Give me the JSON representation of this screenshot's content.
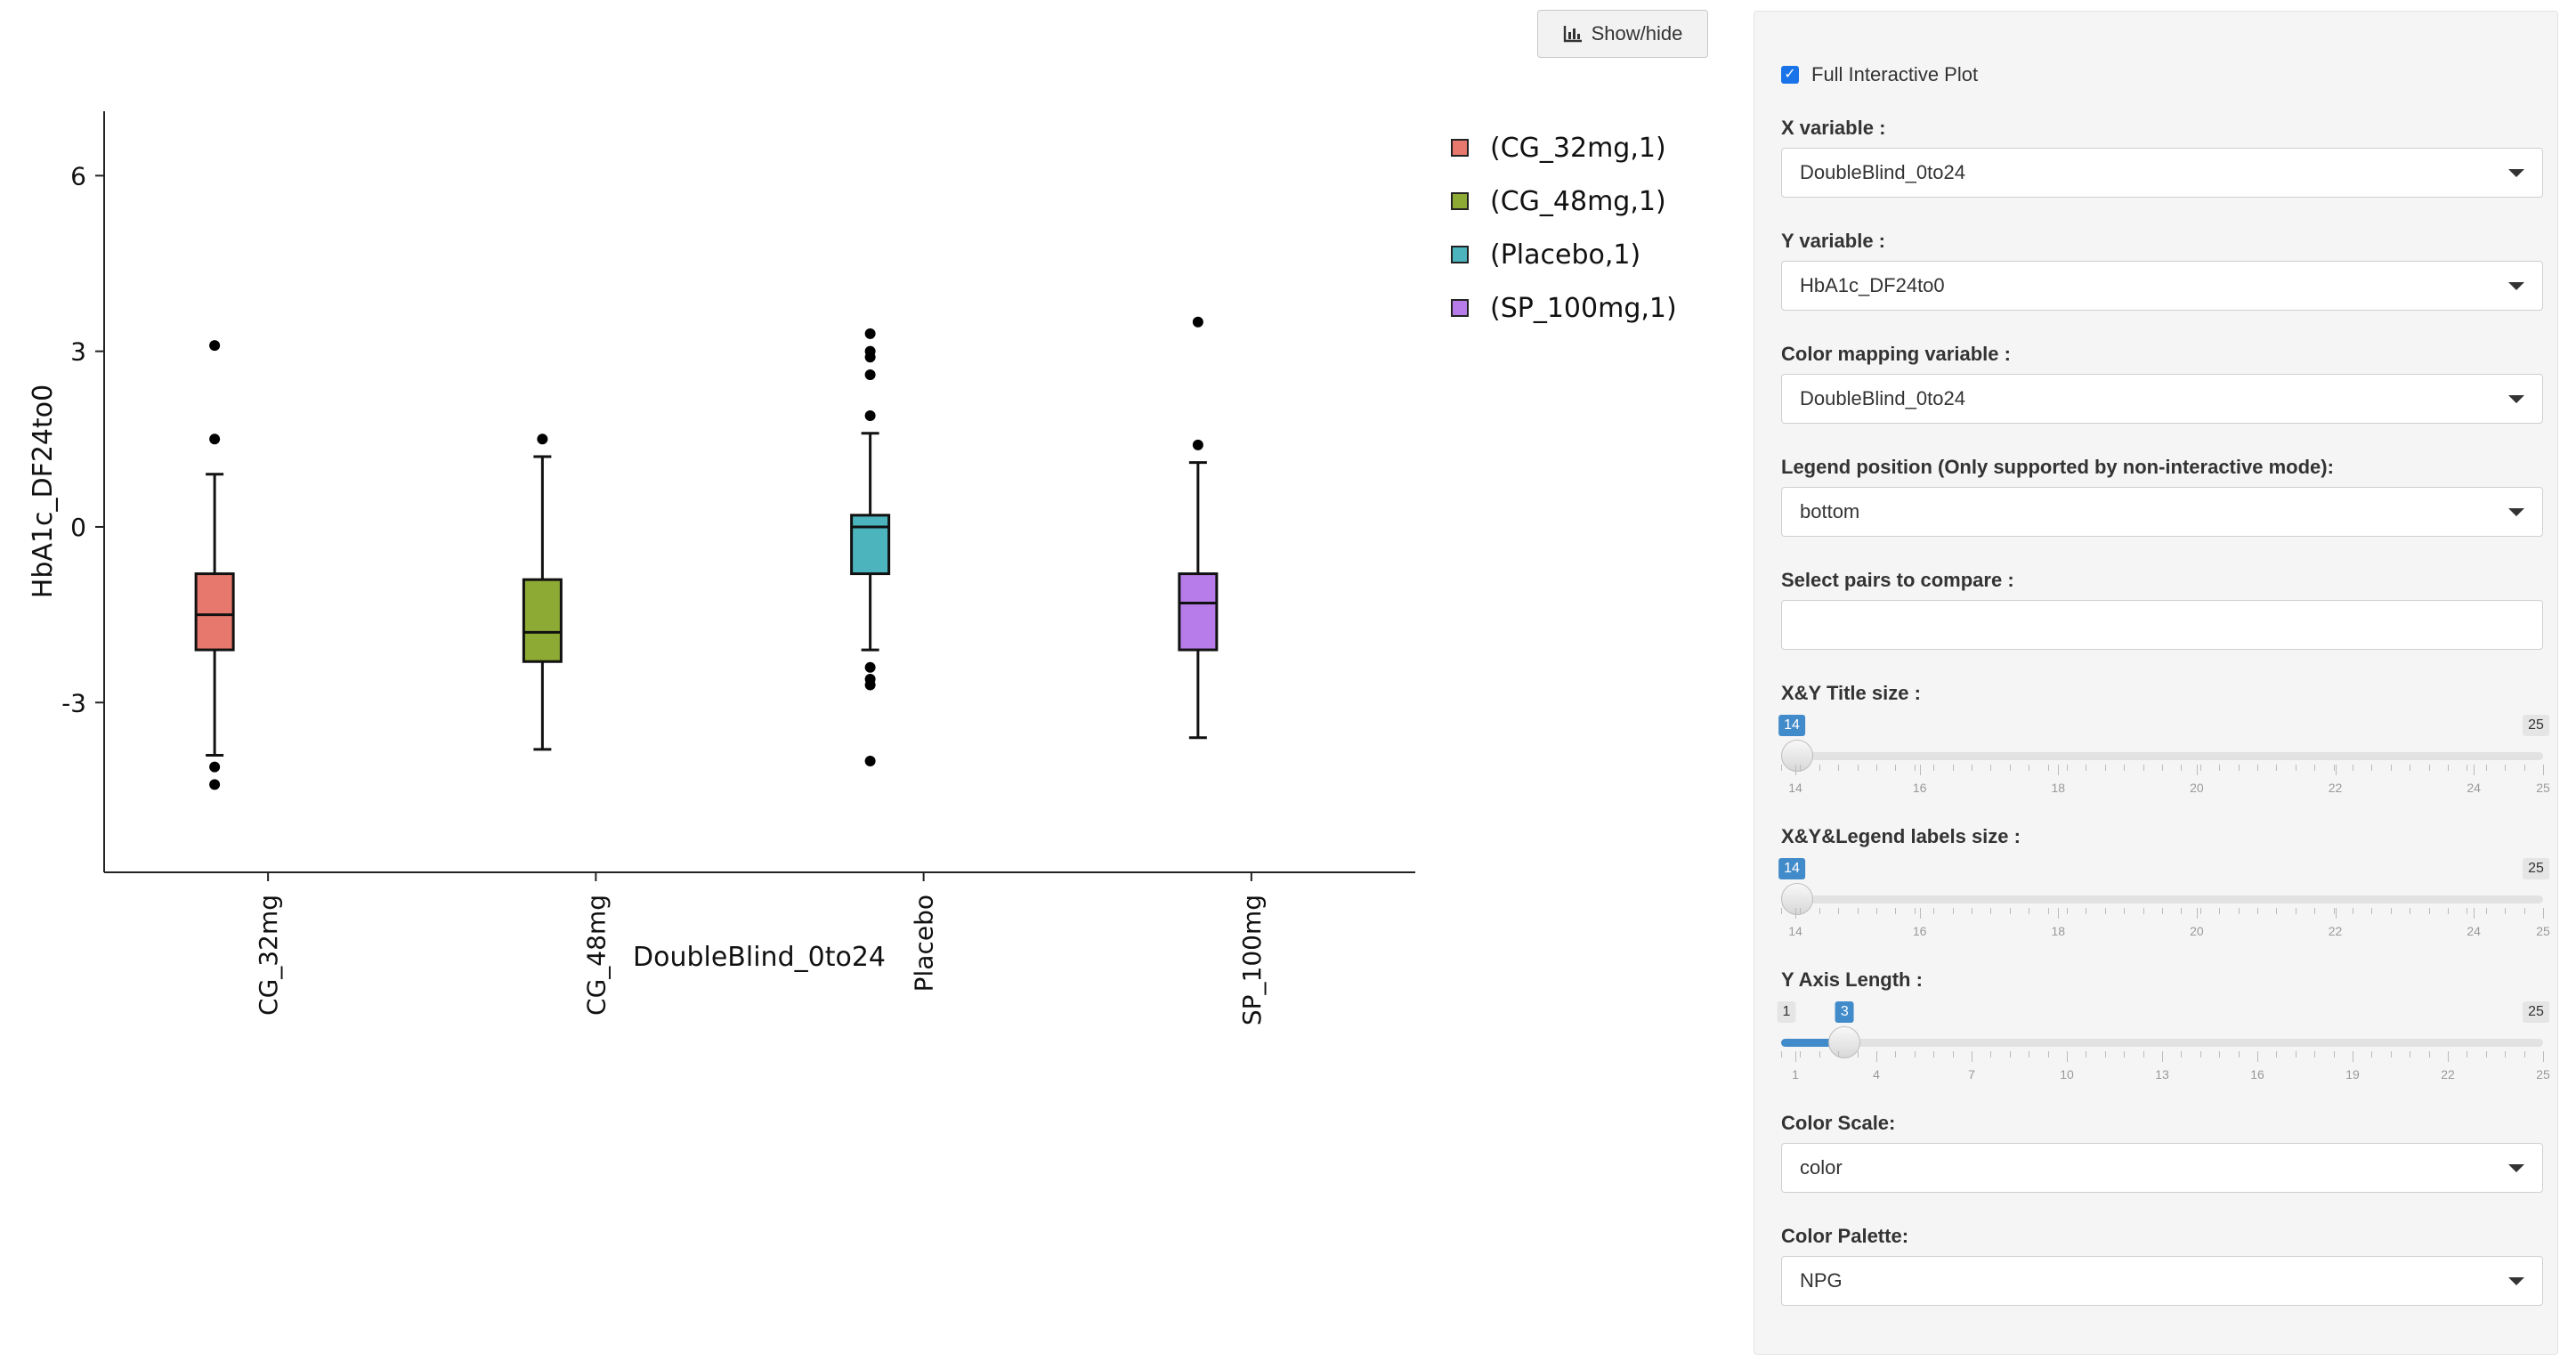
{
  "toolbar": {
    "show_hide_label": "Show/hide",
    "show_hide_icon": "bar-chart-icon"
  },
  "chart_data": {
    "type": "box",
    "xlabel": "DoubleBlind_0to24",
    "ylabel": "HbA1c_DF24to0",
    "yticks": [
      -3,
      0,
      3,
      6
    ],
    "ylim": [
      -5.9,
      7.1
    ],
    "legend_position": "right",
    "categories": [
      "CG_32mg",
      "CG_48mg",
      "Placebo",
      "SP_100mg"
    ],
    "series": [
      {
        "name": "(CG_32mg,1)",
        "category": "CG_32mg",
        "color": "#E6786D",
        "whisker_low": -3.9,
        "q1": -2.1,
        "median": -1.5,
        "q3": -0.8,
        "whisker_high": 0.9,
        "outliers": [
          3.1,
          1.5,
          -4.1,
          -4.4
        ]
      },
      {
        "name": "(CG_48mg,1)",
        "category": "CG_48mg",
        "color": "#8DAA34",
        "whisker_low": -3.8,
        "q1": -2.3,
        "median": -1.8,
        "q3": -0.9,
        "whisker_high": 1.2,
        "outliers": [
          1.5
        ]
      },
      {
        "name": "(Placebo,1)",
        "category": "Placebo",
        "color": "#4BB4BD",
        "whisker_low": -2.1,
        "q1": -0.8,
        "median": 0.0,
        "q3": 0.2,
        "whisker_high": 1.6,
        "outliers": [
          3.3,
          3.0,
          2.9,
          2.6,
          1.9,
          -2.4,
          -2.6,
          -2.7,
          -4.0
        ]
      },
      {
        "name": "(SP_100mg,1)",
        "category": "SP_100mg",
        "color": "#B77BEA",
        "whisker_low": -3.6,
        "q1": -2.1,
        "median": -1.3,
        "q3": -0.8,
        "whisker_high": 1.1,
        "outliers": [
          3.5,
          1.4
        ]
      }
    ]
  },
  "panel": {
    "full_interactive": {
      "label": "Full Interactive Plot",
      "checked": true
    },
    "x_variable": {
      "label": "X variable :",
      "value": "DoubleBlind_0to24"
    },
    "y_variable": {
      "label": "Y variable :",
      "value": "HbA1c_DF24to0"
    },
    "color_mapping": {
      "label": "Color mapping variable :",
      "value": "DoubleBlind_0to24"
    },
    "legend_position": {
      "label": "Legend position (Only supported by non-interactive mode):",
      "value": "bottom"
    },
    "pairs_compare": {
      "label": "Select pairs to compare :",
      "value": ""
    },
    "title_size": {
      "label": "X&Y Title size :",
      "min": 14,
      "max": 25,
      "value": 14,
      "ticks": [
        "14",
        "16",
        "18",
        "20",
        "22",
        "24",
        "25"
      ]
    },
    "labels_size": {
      "label": "X&Y&Legend labels size :",
      "min": 14,
      "max": 25,
      "value": 14,
      "ticks": [
        "14",
        "16",
        "18",
        "20",
        "22",
        "24",
        "25"
      ]
    },
    "y_axis_length": {
      "label": "Y Axis Length :",
      "min": 1,
      "max": 25,
      "value": 3,
      "ticks": [
        "1",
        "4",
        "7",
        "10",
        "13",
        "16",
        "19",
        "22",
        "25"
      ]
    },
    "color_scale": {
      "label": "Color Scale:",
      "value": "color"
    },
    "color_palette": {
      "label": "Color Palette:",
      "value": "NPG"
    }
  }
}
